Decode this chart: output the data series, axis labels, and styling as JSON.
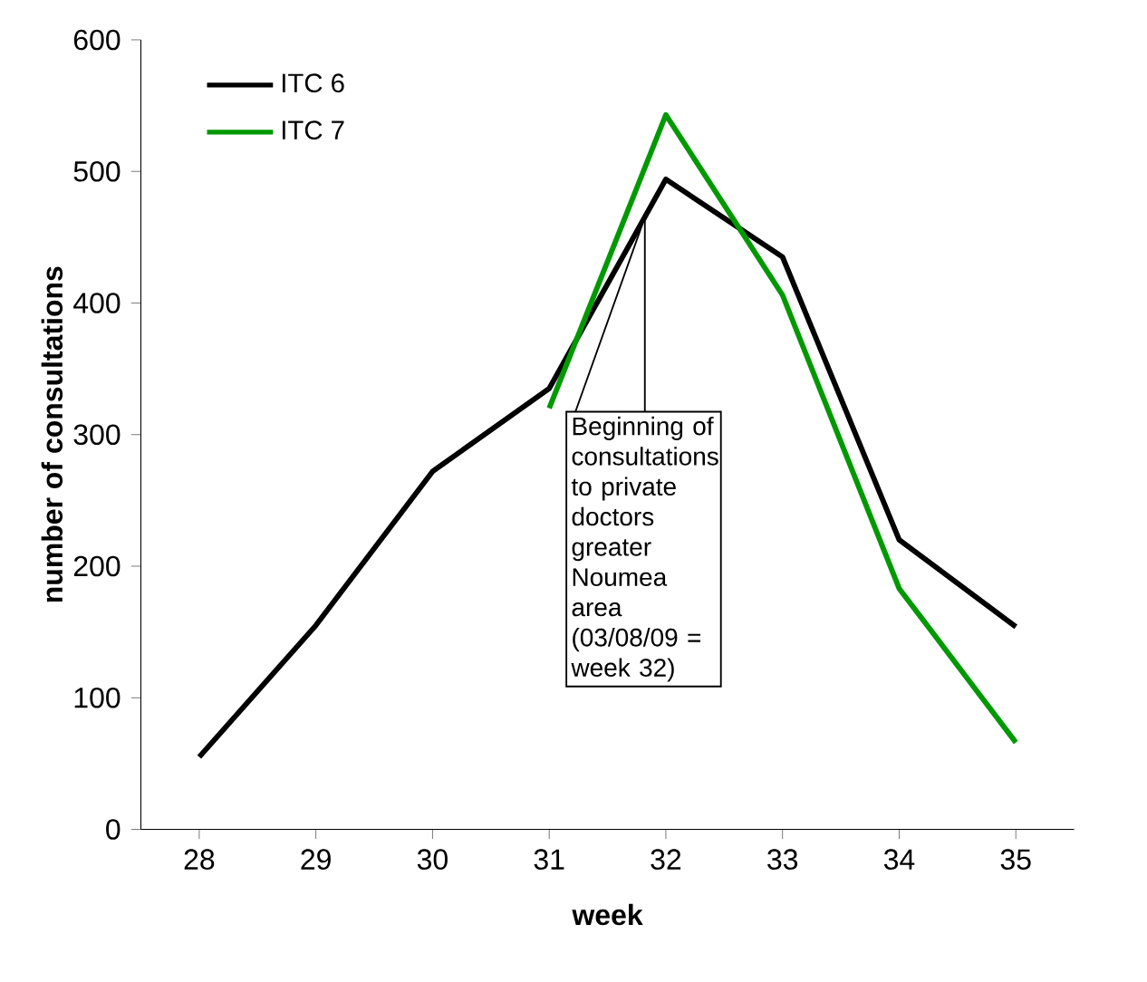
{
  "chart_data": {
    "type": "line",
    "xlabel": "week",
    "ylabel": "number of consultations",
    "categories": [
      "28",
      "29",
      "30",
      "31",
      "32",
      "33",
      "34",
      "35"
    ],
    "series": [
      {
        "name": "ITC 6",
        "color": "#000000",
        "values": [
          55,
          155,
          272,
          335,
          494,
          435,
          220,
          154
        ]
      },
      {
        "name": "ITC 7",
        "color": "#009900",
        "values": [
          null,
          null,
          null,
          320,
          543,
          406,
          183,
          66
        ]
      }
    ],
    "ylim": [
      0,
      600
    ],
    "yticks": [
      0,
      100,
      200,
      300,
      400,
      500,
      600
    ],
    "grid": false,
    "legend": "top left",
    "marker": "none",
    "line_style": "solid",
    "annotations": [
      "Beginning of consultations to private doctors greater Noumea area (03/08/09 = week 32)"
    ]
  }
}
